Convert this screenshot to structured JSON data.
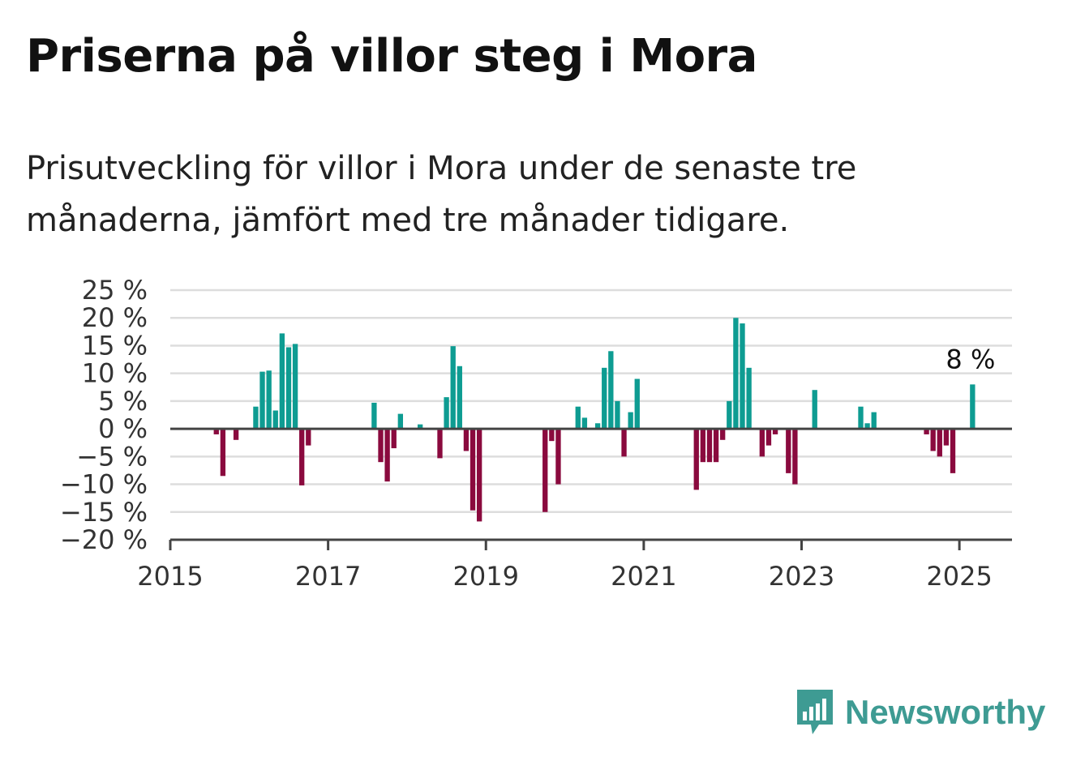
{
  "title": "Priserna på villor steg i Mora",
  "subtitle": "Prisutveckling för villor i Mora under de senaste tre månaderna, jämfört med tre månader tidigare.",
  "brand": {
    "name": "Newsworthy",
    "color": "#3e9b93",
    "icon": "bar-chart-speech-bubble-icon"
  },
  "colors": {
    "positive": "#0e9c92",
    "negative": "#8a0a3e",
    "grid": "#dddddd",
    "axis": "#444444"
  },
  "chart_data": {
    "type": "bar",
    "title": "Priserna på villor steg i Mora",
    "xlabel": "",
    "ylabel": "",
    "ylim": [
      -20,
      25
    ],
    "yticks": [
      25,
      20,
      15,
      10,
      5,
      0,
      -5,
      -10,
      -15,
      -20
    ],
    "ytick_labels": [
      "25 %",
      "20 %",
      "15 %",
      "10 %",
      "5 %",
      "0 %",
      "−5 %",
      "−10 %",
      "−15 %",
      "−20 %"
    ],
    "xlim": [
      "2015-01",
      "2025-09"
    ],
    "xticks": [
      "2015",
      "2017",
      "2019",
      "2021",
      "2023",
      "2025"
    ],
    "grid": true,
    "annotation": {
      "label": "8 %",
      "x": "2025-03",
      "y": 8
    },
    "x": [
      "2015-08",
      "2015-09",
      "2015-11",
      "2016-02",
      "2016-03",
      "2016-04",
      "2016-05",
      "2016-06",
      "2016-07",
      "2016-08",
      "2016-09",
      "2016-10",
      "2017-08",
      "2017-09",
      "2017-10",
      "2017-11",
      "2017-12",
      "2018-03",
      "2018-06",
      "2018-07",
      "2018-08",
      "2018-09",
      "2018-10",
      "2018-11",
      "2018-12",
      "2019-10",
      "2019-11",
      "2019-12",
      "2020-03",
      "2020-04",
      "2020-06",
      "2020-07",
      "2020-08",
      "2020-09",
      "2020-10",
      "2020-11",
      "2020-12",
      "2021-09",
      "2021-10",
      "2021-11",
      "2021-12",
      "2022-01",
      "2022-02",
      "2022-03",
      "2022-04",
      "2022-05",
      "2022-07",
      "2022-08",
      "2022-09",
      "2022-11",
      "2022-12",
      "2023-03",
      "2023-10",
      "2023-11",
      "2023-12",
      "2024-08",
      "2024-09",
      "2024-10",
      "2024-11",
      "2024-12",
      "2025-03"
    ],
    "values": [
      -1,
      -8.5,
      -2,
      4,
      10.3,
      10.5,
      3.3,
      17.2,
      14.7,
      15.3,
      -10.2,
      -3,
      4.7,
      -6,
      -9.5,
      -3.5,
      2.7,
      0.8,
      -5.3,
      5.7,
      14.9,
      11.3,
      -4,
      -14.7,
      -16.7,
      -15,
      -2.2,
      -10,
      4,
      2,
      1,
      11,
      14,
      5,
      -5,
      3,
      9,
      -11,
      -6,
      -6,
      -6,
      -2,
      5,
      20,
      19,
      11,
      -5,
      -3,
      -1,
      -8,
      -10,
      7,
      4,
      1,
      3,
      -1,
      -4,
      -5,
      -3,
      -8,
      8
    ]
  }
}
